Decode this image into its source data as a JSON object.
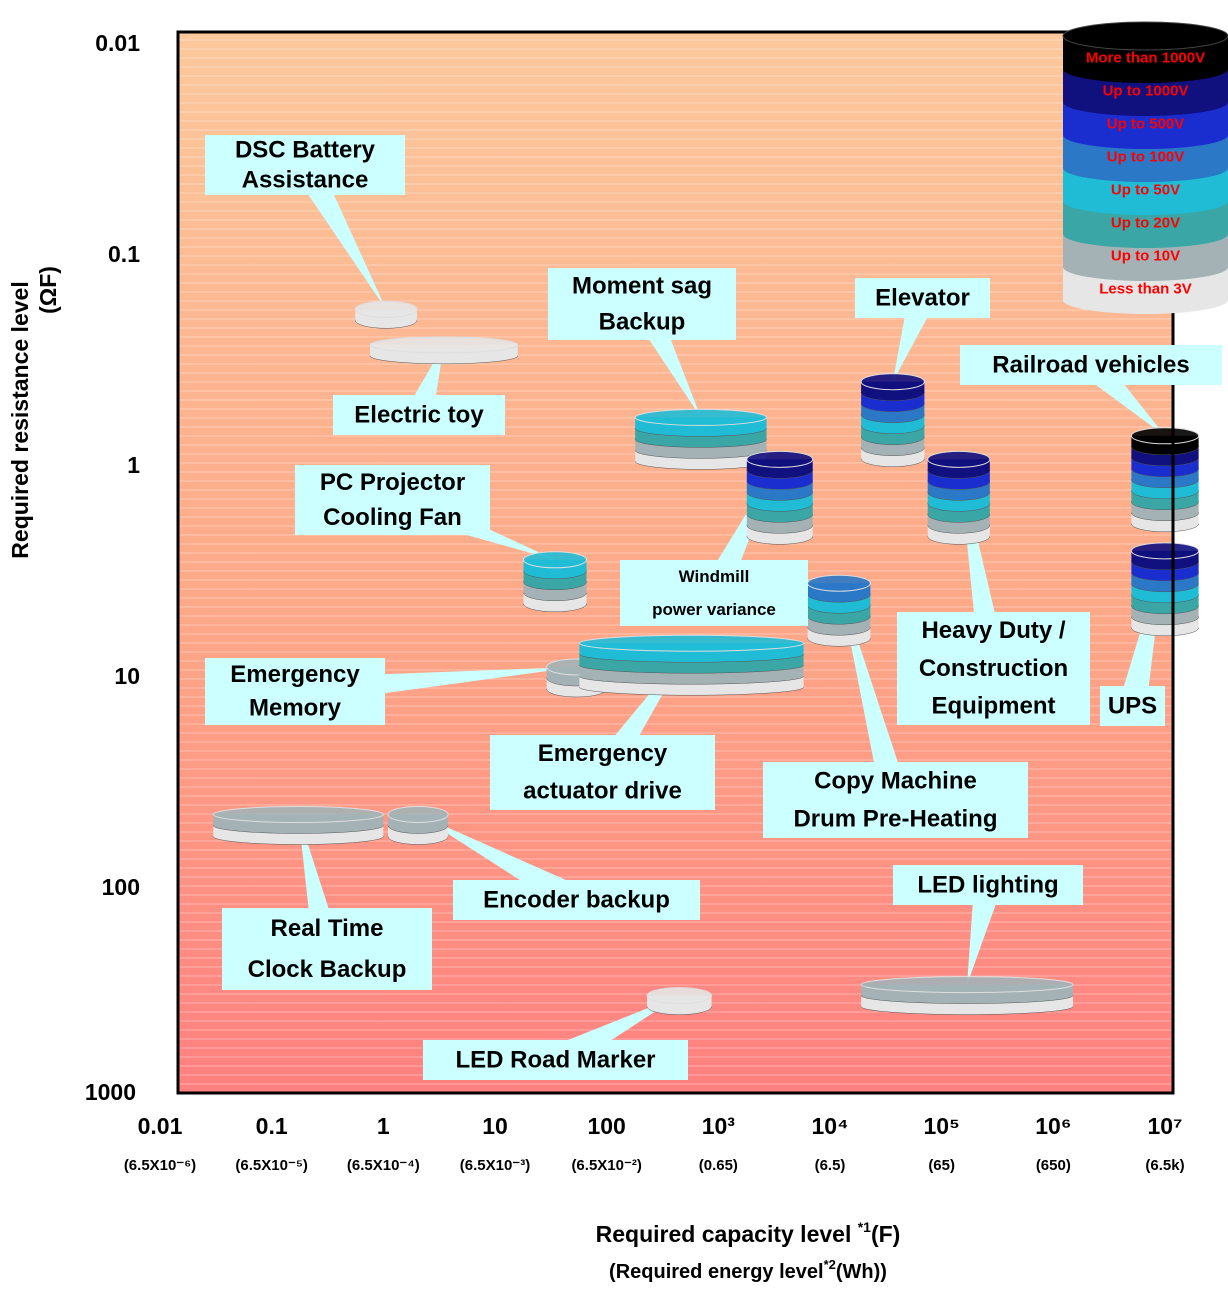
{
  "chart_data": {
    "type": "application-map",
    "ylabel": "Required resistance level",
    "ylabel_unit": "(ΩF)",
    "xlabel": {
      "text": "Required capacity level ",
      "note": "*1",
      "unit": "(F)"
    },
    "x2label": {
      "text": "(Required energy level",
      "note": "*2",
      "unit": "(Wh))"
    },
    "xscale": "log",
    "yscale": "log",
    "xlim": [
      0.01,
      10000000
    ],
    "ylim": [
      0.01,
      1000
    ],
    "xticks": [
      0.01,
      0.1,
      1,
      10,
      100,
      {
        "value": 1000,
        "label": "10³"
      },
      {
        "value": 10000,
        "label": "10⁴"
      },
      {
        "value": 100000,
        "label": "10⁵"
      },
      {
        "value": 1000000,
        "label": "10⁶"
      },
      {
        "value": 10000000,
        "label": "10⁷"
      }
    ],
    "x2ticks": [
      {
        "value": 6.5e-06,
        "label": "(6.5X10⁻⁶)"
      },
      {
        "value": 6.5e-05,
        "label": "(6.5X10⁻⁵)"
      },
      {
        "value": 0.00065,
        "label": "(6.5X10⁻⁴)"
      },
      {
        "value": 0.0065,
        "label": "(6.5X10⁻³)"
      },
      {
        "value": 0.065,
        "label": "(6.5X10⁻²)"
      },
      {
        "value": 0.65,
        "label": "(0.65)"
      },
      {
        "value": 6.5,
        "label": "(6.5)"
      },
      {
        "value": 65,
        "label": "(65)"
      },
      {
        "value": 650,
        "label": "(650)"
      },
      {
        "value": 6500,
        "label": "(6.5k)"
      }
    ],
    "yticks": [
      0.01,
      0.1,
      1,
      10,
      100,
      1000
    ],
    "voltage_levels": [
      {
        "name": "Less than 3V",
        "color": "#e6e6e6"
      },
      {
        "name": "Up to 10V",
        "color": "#a4b2b6"
      },
      {
        "name": "Up to 20V",
        "color": "#3aa6a6"
      },
      {
        "name": "Up to 50V",
        "color": "#20bcd6"
      },
      {
        "name": "Up to 100V",
        "color": "#2a78c6"
      },
      {
        "name": "Up to 500V",
        "color": "#1a2ed0"
      },
      {
        "name": "Up to 1000V",
        "color": "#10107e"
      },
      {
        "name": "More than 1000V",
        "color": "#000000"
      }
    ],
    "legend_text_color": "#ff0000",
    "applications": [
      {
        "label": [
          "DSC Battery",
          "Assistance"
        ],
        "x": [
          0.56,
          2
        ],
        "y": 0.19,
        "levels": 1
      },
      {
        "label": [
          "Electric toy"
        ],
        "x": [
          0.76,
          16
        ],
        "y": 0.28,
        "levels": 1
      },
      {
        "label": [
          "Moment sag",
          "Backup"
        ],
        "x": [
          180,
          2700
        ],
        "y": 0.74,
        "levels": 4
      },
      {
        "label": [
          "Windmill",
          "power variance"
        ],
        "x": [
          1800,
          7000
        ],
        "y": 1.4,
        "levels": 7
      },
      {
        "label": [
          "Elevator"
        ],
        "x": [
          19000,
          70000
        ],
        "y": 0.6,
        "levels": 7
      },
      {
        "label": [
          "Railroad vehicles"
        ],
        "x": [
          5000000,
          20000000
        ],
        "y": 1.15,
        "levels": 8
      },
      {
        "label": [
          "PC Projector",
          "Cooling Fan"
        ],
        "x": [
          18,
          66
        ],
        "y": 3.5,
        "levels": 4
      },
      {
        "label": [
          "Copy Machine",
          "Drum Pre-Heating"
        ],
        "x": [
          6300,
          23000
        ],
        "y": 4.8,
        "levels": 5
      },
      {
        "label": [
          "Emergency",
          "Memory"
        ],
        "x": [
          29,
          100
        ],
        "y": 10,
        "levels": 2
      },
      {
        "label": [
          "Emergency",
          "actuator drive"
        ],
        "x": [
          57,
          5800
        ],
        "y": 8.7,
        "levels": 4
      },
      {
        "label": [
          "Heavy Duty /",
          "Construction",
          "Equipment"
        ],
        "x": [
          75000,
          270000
        ],
        "y": 1.4,
        "levels": 7
      },
      {
        "label": [
          "UPS"
        ],
        "x": [
          5000000,
          20000000
        ],
        "y": 3.8,
        "levels": 7
      },
      {
        "label": [
          "Real Time",
          "Clock Backup"
        ],
        "x": [
          0.03,
          1
        ],
        "y": 50,
        "levels": 2
      },
      {
        "label": [
          "Encoder backup"
        ],
        "x": [
          1.1,
          3.8
        ],
        "y": 50,
        "levels": 2
      },
      {
        "label": [
          "LED lighting"
        ],
        "x": [
          19000,
          1500000
        ],
        "y": 320,
        "levels": 2
      },
      {
        "label": [
          "LED Road Marker"
        ],
        "x": [
          230,
          870
        ],
        "y": 340,
        "levels": 1
      }
    ]
  }
}
